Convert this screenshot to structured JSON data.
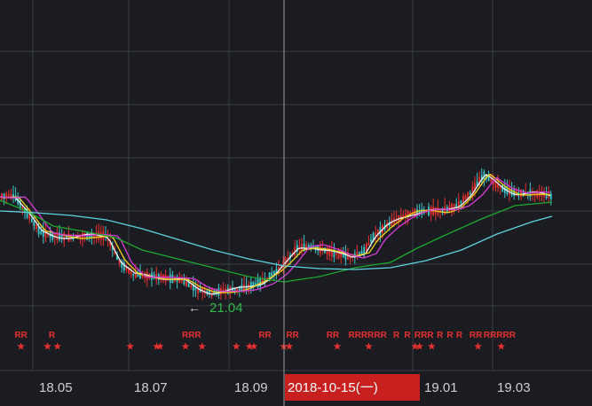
{
  "chart_data": {
    "type": "line",
    "x_ticks": [
      "18.05",
      "18.07",
      "18.09",
      "19.01",
      "19.03"
    ],
    "cursor_date": "2018-10-15(一)",
    "min_price_label": "21.04",
    "signal_rows": [
      {
        "label": "RR",
        "kind": "R",
        "at": 0.038
      },
      {
        "label": "R",
        "kind": "R",
        "at": 0.094
      },
      {
        "label": "RRR",
        "kind": "R",
        "at": 0.347
      },
      {
        "label": "RR",
        "kind": "R",
        "at": 0.48
      },
      {
        "label": "RR",
        "kind": "R",
        "at": 0.53
      },
      {
        "label": "RR",
        "kind": "R",
        "at": 0.603
      },
      {
        "label": "RRRRR",
        "kind": "R",
        "at": 0.66
      },
      {
        "label": "R",
        "kind": "R",
        "at": 0.695
      },
      {
        "label": "R",
        "kind": "R",
        "at": 0.718
      },
      {
        "label": "R",
        "kind": "R",
        "at": 0.738
      },
      {
        "label": "RRR",
        "kind": "R",
        "at": 0.768
      },
      {
        "label": "R",
        "kind": "R",
        "at": 0.797
      },
      {
        "label": "R",
        "kind": "R",
        "at": 0.815
      },
      {
        "label": "R",
        "kind": "R",
        "at": 0.832
      },
      {
        "label": "RR",
        "kind": "R",
        "at": 0.862
      },
      {
        "label": "RRRRR",
        "kind": "R",
        "at": 0.905
      }
    ],
    "star_rows": [
      0.038,
      0.086,
      0.104,
      0.236,
      0.284,
      0.29,
      0.336,
      0.366,
      0.428,
      0.452,
      0.46,
      0.514,
      0.524,
      0.611,
      0.668,
      0.752,
      0.76,
      0.782,
      0.866,
      0.908
    ],
    "grid": true,
    "colors": {
      "background": "#1a1c21",
      "grid": "#3a3c44",
      "up": "#e8302f",
      "down": "#3fc7c7",
      "ma5": "#f5f5f5",
      "ma10": "#f3d219",
      "ma20": "#d93ad6",
      "ma60": "#1da82d",
      "ma120": "#5fd3e0",
      "cursor_label_bg": "#c81f1f",
      "min_label": "#2fb84b"
    }
  }
}
